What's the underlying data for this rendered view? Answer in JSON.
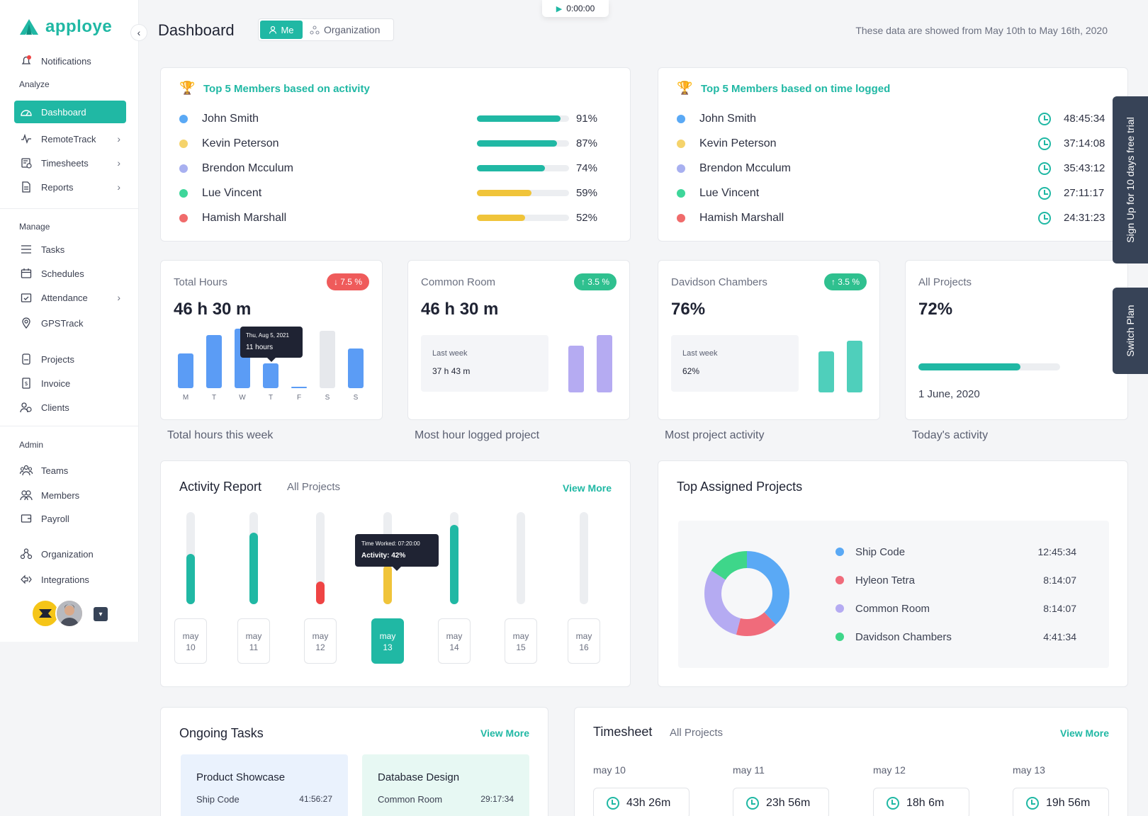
{
  "app": {
    "brand": "apploye",
    "accent": "#20b8a4"
  },
  "timer": {
    "value": "0:00:00",
    "icon": "play-icon"
  },
  "sidebar": {
    "notifications": "Notifications",
    "analyze_head": "Analyze",
    "analyze": [
      {
        "label": "Dashboard",
        "icon": "dashboard-icon"
      },
      {
        "label": "RemoteTrack",
        "icon": "pulse-icon"
      },
      {
        "label": "Timesheets",
        "icon": "timesheet-icon"
      },
      {
        "label": "Reports",
        "icon": "report-icon"
      }
    ],
    "manage_head": "Manage",
    "manage": [
      {
        "label": "Tasks",
        "icon": "tasks-icon"
      },
      {
        "label": "Schedules",
        "icon": "calendar-icon"
      },
      {
        "label": "Attendance",
        "icon": "attendance-icon"
      },
      {
        "label": "GPSTrack",
        "icon": "location-icon"
      },
      {
        "label": "Projects",
        "icon": "project-icon"
      },
      {
        "label": "Invoice",
        "icon": "invoice-icon"
      },
      {
        "label": "Clients",
        "icon": "clients-icon"
      }
    ],
    "admin_head": "Admin",
    "admin": [
      {
        "label": "Teams",
        "icon": "teams-icon"
      },
      {
        "label": "Members",
        "icon": "members-icon"
      },
      {
        "label": "Payroll",
        "icon": "payroll-icon"
      },
      {
        "label": "Organization",
        "icon": "organization-icon"
      },
      {
        "label": "Integrations",
        "icon": "integrations-icon"
      }
    ]
  },
  "header": {
    "title": "Dashboard",
    "toggle_me": "Me",
    "toggle_org": "Organization",
    "date_range": "These data are showed from May 10th to May 16th, 2020"
  },
  "top_activity": {
    "title": "Top 5 Members based on activity",
    "members": [
      {
        "name": "John Smith",
        "pct": "91%",
        "value": 0.91,
        "dot": "#5aa9f5",
        "bar": "#20b8a4"
      },
      {
        "name": "Kevin Peterson",
        "pct": "87%",
        "value": 0.87,
        "dot": "#f5d36b",
        "bar": "#20b8a4"
      },
      {
        "name": "Brendon Mcculum",
        "pct": "74%",
        "value": 0.74,
        "dot": "#a8b0f0",
        "bar": "#20b8a4"
      },
      {
        "name": "Lue Vincent",
        "pct": "59%",
        "value": 0.59,
        "dot": "#3ed69a",
        "bar": "#f0c43a"
      },
      {
        "name": "Hamish Marshall",
        "pct": "52%",
        "value": 0.52,
        "dot": "#f06b6b",
        "bar": "#f0c43a"
      }
    ]
  },
  "top_time": {
    "title": "Top 5 Members based on time logged",
    "members": [
      {
        "name": "John Smith",
        "time": "48:45:34"
      },
      {
        "name": "Kevin Peterson",
        "time": "37:14:08"
      },
      {
        "name": "Brendon Mcculum",
        "time": "35:43:12"
      },
      {
        "name": "Lue Vincent",
        "time": "27:11:17"
      },
      {
        "name": "Hamish Marshall",
        "time": "24:31:23"
      }
    ]
  },
  "stats": {
    "total_hours": {
      "label": "Total Hours",
      "value": "46 h 30 m",
      "badge": "↓ 7.5 %",
      "caption": "Total hours this week",
      "days": [
        "M",
        "T",
        "W",
        "T",
        "F",
        "S",
        "S"
      ],
      "bars": [
        0.54,
        0.83,
        0.93,
        0.39,
        0.02,
        0.9,
        0.62
      ],
      "tooltip_date": "Thu, Aug 5, 2021",
      "tooltip_value": "11 hours"
    },
    "common_room": {
      "label": "Common Room",
      "value": "46 h 30 m",
      "badge": "↑ 3.5 %",
      "caption": "Most hour logged project",
      "lw_label": "Last week",
      "lw_value": "37 h 43 m"
    },
    "davidson": {
      "label": "Davidson Chambers",
      "value": "76%",
      "badge": "↑ 3.5 %",
      "caption": "Most project activity",
      "lw_label": "Last week",
      "lw_value": "62%"
    },
    "all_projects": {
      "label": "All Projects",
      "value": "72%",
      "progress": 0.72,
      "date": "1 June, 2020",
      "caption": "Today's activity"
    }
  },
  "activity_report": {
    "title": "Activity Report",
    "filter": "All Projects",
    "view_more": "View More",
    "tooltip_time": "Time Worked: 07:20:00",
    "tooltip_activity": "Activity: 42%",
    "days": [
      {
        "m": "may",
        "d": "10",
        "level": 0.55,
        "color": "#20b8a4"
      },
      {
        "m": "may",
        "d": "11",
        "level": 0.78,
        "color": "#20b8a4"
      },
      {
        "m": "may",
        "d": "12",
        "level": 0.25,
        "color": "#ef4444"
      },
      {
        "m": "may",
        "d": "13",
        "level": 0.42,
        "color": "#f0c43a"
      },
      {
        "m": "may",
        "d": "14",
        "level": 0.86,
        "color": "#20b8a4"
      },
      {
        "m": "may",
        "d": "15",
        "level": 0,
        "color": "#20b8a4"
      },
      {
        "m": "may",
        "d": "16",
        "level": 0,
        "color": "#20b8a4"
      }
    ]
  },
  "top_projects": {
    "title": "Top Assigned Projects",
    "items": [
      {
        "name": "Ship Code",
        "time": "12:45:34",
        "color": "#5aa9f5",
        "share": 0.38
      },
      {
        "name": "Hyleon Tetra",
        "time": "8:14:07",
        "color": "#f06b7b",
        "share": 0.16
      },
      {
        "name": "Common Room",
        "time": "8:14:07",
        "color": "#b5abf2",
        "share": 0.3
      },
      {
        "name": "Davidson Chambers",
        "time": "4:41:34",
        "color": "#3ed68a",
        "share": 0.16
      }
    ]
  },
  "ongoing": {
    "title": "Ongoing Tasks",
    "view_more": "View More",
    "tasks": [
      {
        "name": "Product Showcase",
        "project": "Ship Code",
        "time": "41:56:27"
      },
      {
        "name": "Database Design",
        "project": "Common Room",
        "time": "29:17:34"
      }
    ]
  },
  "timesheet": {
    "title": "Timesheet",
    "filter": "All Projects",
    "view_more": "View More",
    "days": [
      {
        "day": "may 10",
        "time": "43h 26m"
      },
      {
        "day": "may 11",
        "time": "23h 56m"
      },
      {
        "day": "may 12",
        "time": "18h 6m"
      },
      {
        "day": "may 13",
        "time": "19h 56m"
      }
    ]
  },
  "side_tabs": {
    "trial": "Sign Up for 10 days free trial",
    "switch": "Switch Plan"
  }
}
